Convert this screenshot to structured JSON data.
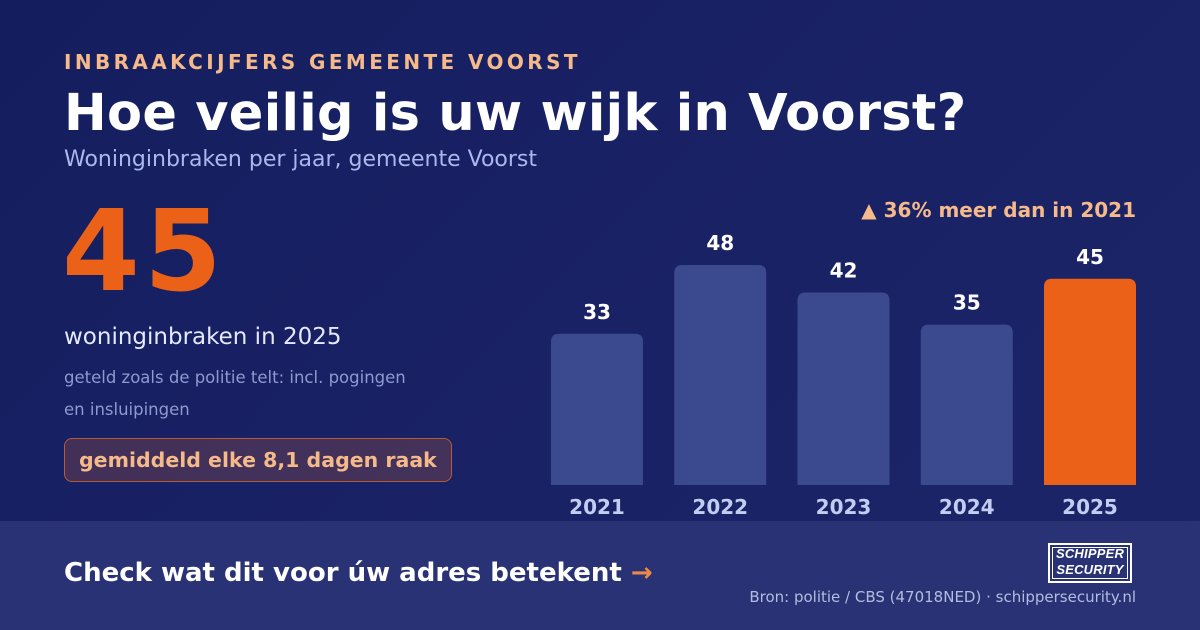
{
  "header": {
    "eyebrow": "INBRAAKCIJFERS GEMEENTE VOORST",
    "title": "Hoe veilig is uw wijk in Voorst?",
    "subtitle": "Woninginbraken per jaar, gemeente Voorst"
  },
  "stat": {
    "value": "45",
    "label": "woninginbraken in 2025",
    "note": "geteld zoals de politie telt: incl. pogingen en insluipingen",
    "pill": "gemiddeld elke 8,1 dagen raak"
  },
  "delta": "▲ 36% meer dan in 2021",
  "chart_data": {
    "type": "bar",
    "title": "",
    "xlabel": "",
    "ylabel": "",
    "categories": [
      "2021",
      "2022",
      "2023",
      "2024",
      "2025"
    ],
    "values": [
      33,
      48,
      42,
      35,
      45
    ],
    "ylim": [
      0,
      48
    ],
    "grid": false,
    "highlight_index": 4,
    "colors": {
      "bar": "#3b4a8f",
      "highlight": "#ec6118",
      "value_label": "#ffffff",
      "tick_label": "#c3cdf2"
    }
  },
  "footer": {
    "cta": "Check wat dit voor úw adres betekent",
    "cta_arrow": "→",
    "logo_line1": "SCHIPPER",
    "logo_line2": "SECURITY",
    "source": "Bron: politie / CBS (47018NED) · schippersecurity.nl"
  },
  "colors": {
    "background": "#141e5e",
    "accent": "#ec6118",
    "accent_soft": "#f5b98a",
    "footer": "#283275"
  }
}
